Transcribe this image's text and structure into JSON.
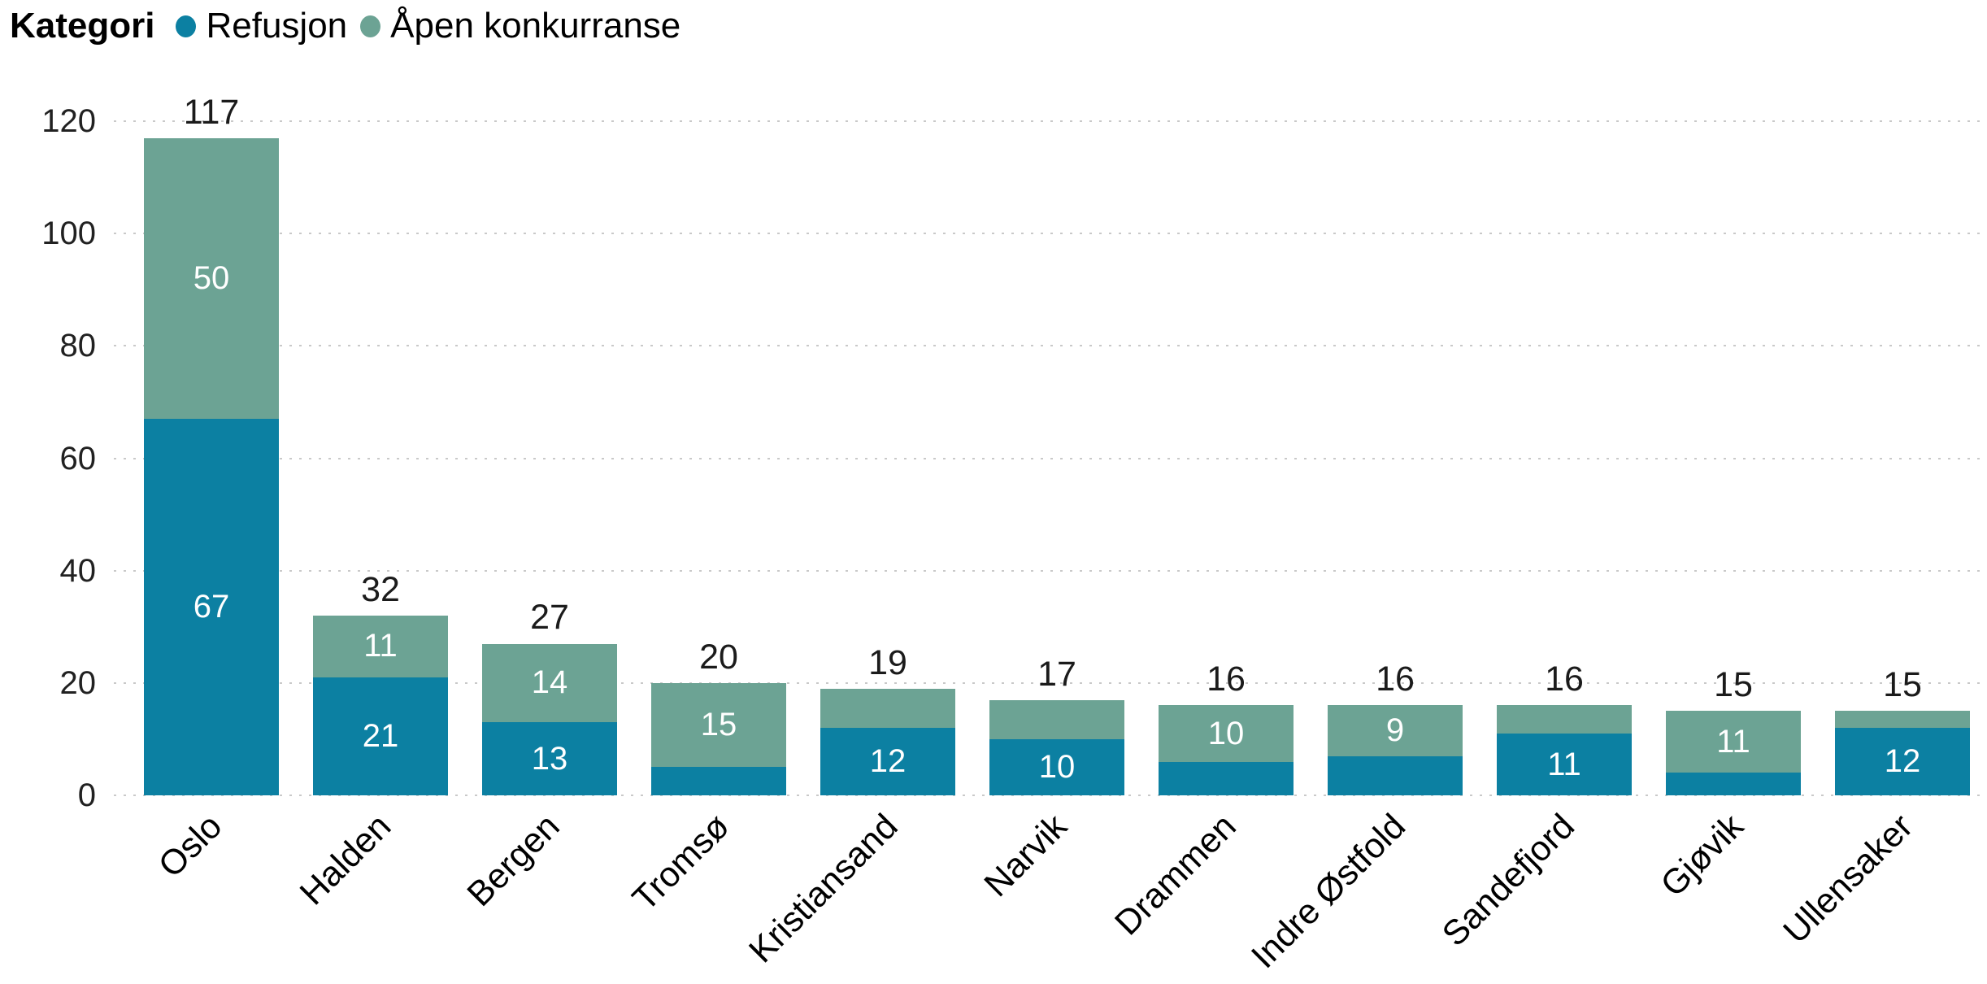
{
  "legend": {
    "title": "Kategori",
    "items": [
      {
        "label": "Refusjon",
        "color": "#0c80a2"
      },
      {
        "label": "Åpen konkurranse",
        "color": "#6ca394"
      }
    ]
  },
  "chart_data": {
    "type": "bar",
    "stacked": true,
    "categories": [
      "Oslo",
      "Halden",
      "Bergen",
      "Tromsø",
      "Kristiansand",
      "Narvik",
      "Drammen",
      "Indre Østfold",
      "Sandefjord",
      "Gjøvik",
      "Ullensaker"
    ],
    "series": [
      {
        "name": "Refusjon",
        "color": "#0c80a2",
        "values": [
          67,
          21,
          13,
          5,
          12,
          10,
          6,
          7,
          11,
          4,
          12
        ]
      },
      {
        "name": "Åpen konkurranse",
        "color": "#6ca394",
        "values": [
          50,
          11,
          14,
          15,
          7,
          7,
          10,
          9,
          5,
          11,
          3
        ]
      }
    ],
    "totals": [
      117,
      32,
      27,
      20,
      19,
      17,
      16,
      16,
      16,
      15,
      15
    ],
    "y_ticks": [
      0,
      20,
      40,
      60,
      80,
      100,
      120
    ],
    "ylim": [
      0,
      120
    ],
    "grid": "dotted-horizontal",
    "legend_position": "top-left",
    "gridline_color": "#c9c9c9",
    "label_min_value_to_show": 9,
    "segment_label_color": "#ffffff",
    "total_label_color": "#1b1b1b",
    "x_label_rotation_deg": -45
  }
}
